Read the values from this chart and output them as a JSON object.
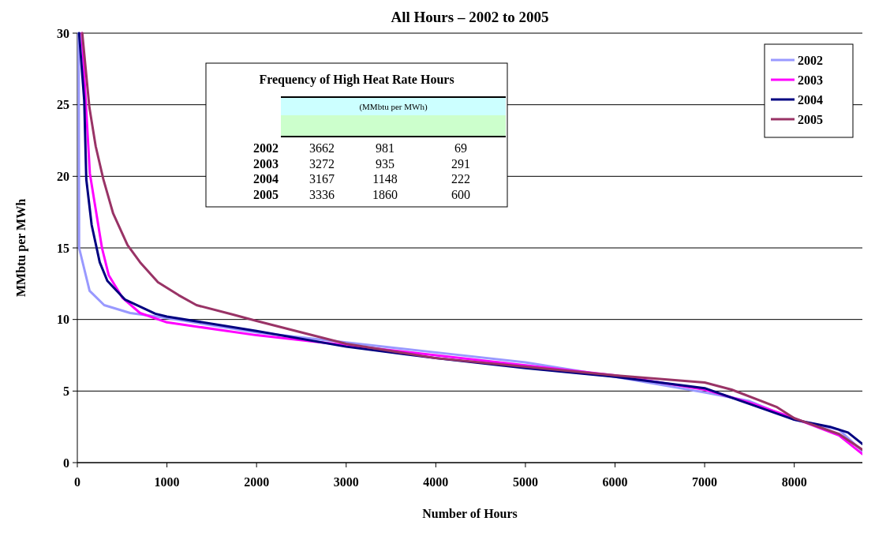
{
  "chart_data": {
    "type": "line",
    "title": "All Hours – 2002 to 2005",
    "xlabel": "Number of Hours",
    "ylabel": "MMbtu per MWh",
    "xlim": [
      0,
      8760
    ],
    "xticks": [
      0,
      1000,
      2000,
      3000,
      4000,
      5000,
      6000,
      7000,
      8000
    ],
    "ylim": [
      0,
      30
    ],
    "yticks": [
      0,
      5,
      10,
      15,
      20,
      25,
      30
    ],
    "grid": "y",
    "legend": "top right",
    "marker": "none",
    "line_style": "solid",
    "annotations": [
      "Frequency of High Heat Rate Hours",
      "(MMbtu per MWh)",
      "2002 3662 981 69",
      "2003 3272 935 291",
      "2004 3167 1148 222",
      "2005 3336 1860 600"
    ],
    "series": [
      {
        "name": "2002",
        "color": "#9999ff",
        "x": [
          15,
          20,
          137,
          300,
          590,
          1000,
          2000,
          3000,
          4000,
          5000,
          6000,
          7000,
          7500,
          8000,
          8500,
          8760
        ],
        "values": [
          30,
          15,
          12,
          11,
          10.45,
          10.1,
          9.1,
          8.4,
          7.7,
          7,
          6,
          4.9,
          4.3,
          3,
          2.3,
          0.8
        ]
      },
      {
        "name": "2003",
        "color": "#ff00ff",
        "x": [
          50,
          140,
          275,
          350,
          505,
          700,
          1000,
          2000,
          3000,
          4000,
          5000,
          6000,
          7000,
          7500,
          8000,
          8500,
          8760
        ],
        "values": [
          30,
          20.2,
          15,
          13.1,
          11.5,
          10.45,
          9.8,
          8.9,
          8.2,
          7.5,
          6.8,
          6.1,
          5.1,
          4.2,
          3.1,
          1.9,
          0.6
        ]
      },
      {
        "name": "2004",
        "color": "#000080",
        "x": [
          20,
          77,
          100,
          160,
          250,
          335,
          530,
          870,
          1000,
          2000,
          3000,
          4000,
          5000,
          6000,
          7000,
          7500,
          8000,
          8400,
          8600,
          8760
        ],
        "values": [
          30,
          25.3,
          19.8,
          16.6,
          14,
          12.7,
          11.4,
          10.4,
          10.2,
          9.2,
          8.1,
          7.3,
          6.6,
          6,
          5.2,
          4.1,
          3,
          2.5,
          2.1,
          1.3
        ]
      },
      {
        "name": "2005",
        "color": "#993366",
        "x": [
          55,
          135,
          205,
          290,
          400,
          560,
          700,
          900,
          1130,
          1330,
          1730,
          2000,
          3000,
          4000,
          5000,
          6000,
          7000,
          7300,
          7800,
          8000,
          8500,
          8760
        ],
        "values": [
          30,
          24.8,
          22.1,
          19.8,
          17.4,
          15.2,
          14,
          12.6,
          11.7,
          11,
          10.35,
          9.9,
          8.3,
          7.3,
          6.7,
          6.1,
          5.6,
          5.1,
          3.9,
          3.1,
          2,
          0.9
        ]
      }
    ]
  }
}
